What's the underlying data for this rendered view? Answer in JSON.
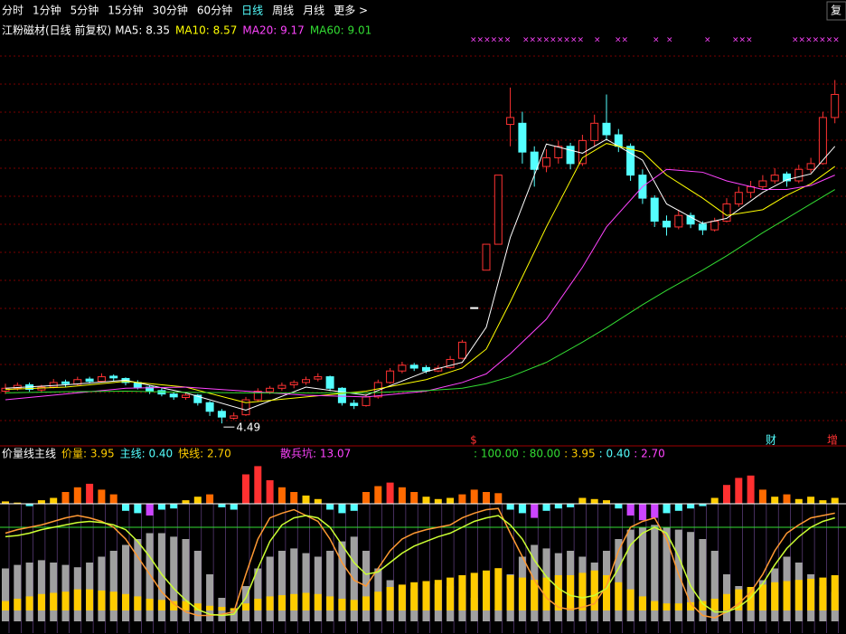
{
  "toolbar": {
    "items": [
      "分时",
      "1分钟",
      "5分钟",
      "15分钟",
      "30分钟",
      "60分钟",
      "日线",
      "周线",
      "月线",
      "更多 >"
    ],
    "active": 6,
    "right": "复"
  },
  "chart": {
    "type": "candlestick",
    "title": "江粉磁材(日线 前复权)",
    "legend": [
      {
        "text": "MA5: 8.35",
        "color": "#ffffff"
      },
      {
        "text": "MA10: 8.57",
        "color": "#ffff00"
      },
      {
        "text": "MA20: 9.17",
        "color": "#ff44ff"
      },
      {
        "text": "MA60: 9.01",
        "color": "#33dd33"
      }
    ],
    "ylim": [
      4.1,
      11.4
    ],
    "candles": [
      [
        5.05,
        5.18,
        5.0,
        5.1
      ],
      [
        5.1,
        5.2,
        5.06,
        5.15
      ],
      [
        5.16,
        5.2,
        5.04,
        5.08
      ],
      [
        5.07,
        5.16,
        5.03,
        5.12
      ],
      [
        5.12,
        5.26,
        5.1,
        5.2
      ],
      [
        5.21,
        5.25,
        5.12,
        5.18
      ],
      [
        5.17,
        5.3,
        5.15,
        5.25
      ],
      [
        5.26,
        5.3,
        5.18,
        5.22
      ],
      [
        5.22,
        5.36,
        5.2,
        5.3
      ],
      [
        5.31,
        5.34,
        5.22,
        5.28
      ],
      [
        5.27,
        5.29,
        5.15,
        5.2
      ],
      [
        5.2,
        5.24,
        5.08,
        5.12
      ],
      [
        5.12,
        5.15,
        5.0,
        5.05
      ],
      [
        5.06,
        5.1,
        4.96,
        5.0
      ],
      [
        5.0,
        5.04,
        4.9,
        4.95
      ],
      [
        4.94,
        5.02,
        4.9,
        4.98
      ],
      [
        4.98,
        5.0,
        4.8,
        4.85
      ],
      [
        4.85,
        4.88,
        4.62,
        4.7
      ],
      [
        4.7,
        4.74,
        4.49,
        4.6
      ],
      [
        4.58,
        4.68,
        4.55,
        4.62
      ],
      [
        4.64,
        4.95,
        4.62,
        4.9
      ],
      [
        4.9,
        5.1,
        4.86,
        5.05
      ],
      [
        5.04,
        5.14,
        5.0,
        5.1
      ],
      [
        5.1,
        5.2,
        5.06,
        5.15
      ],
      [
        5.16,
        5.24,
        5.1,
        5.2
      ],
      [
        5.2,
        5.3,
        5.16,
        5.25
      ],
      [
        5.26,
        5.36,
        5.22,
        5.3
      ],
      [
        5.3,
        5.32,
        5.05,
        5.1
      ],
      [
        5.1,
        5.12,
        4.8,
        4.85
      ],
      [
        4.84,
        4.9,
        4.74,
        4.8
      ],
      [
        4.8,
        5.0,
        4.78,
        4.95
      ],
      [
        4.95,
        5.25,
        4.92,
        5.2
      ],
      [
        5.2,
        5.45,
        5.18,
        5.4
      ],
      [
        5.4,
        5.56,
        5.36,
        5.5
      ],
      [
        5.5,
        5.54,
        5.4,
        5.45
      ],
      [
        5.46,
        5.5,
        5.36,
        5.4
      ],
      [
        5.4,
        5.5,
        5.38,
        5.45
      ],
      [
        5.46,
        5.66,
        5.44,
        5.6
      ],
      [
        5.62,
        5.94,
        5.6,
        5.9
      ],
      [
        6.5,
        6.5,
        6.5,
        6.5
      ],
      [
        7.15,
        7.6,
        7.15,
        7.6
      ],
      [
        7.6,
        8.8,
        7.6,
        8.8
      ],
      [
        9.68,
        10.32,
        9.3,
        9.8
      ],
      [
        9.7,
        9.9,
        9.0,
        9.2
      ],
      [
        9.2,
        9.3,
        8.6,
        8.9
      ],
      [
        8.95,
        9.25,
        8.85,
        9.1
      ],
      [
        9.1,
        9.4,
        9.0,
        9.3
      ],
      [
        9.3,
        9.36,
        8.9,
        9.0
      ],
      [
        9.0,
        9.5,
        8.96,
        9.4
      ],
      [
        9.4,
        9.85,
        9.3,
        9.7
      ],
      [
        9.7,
        10.2,
        9.4,
        9.5
      ],
      [
        9.5,
        9.6,
        9.2,
        9.3
      ],
      [
        9.3,
        9.35,
        8.7,
        8.8
      ],
      [
        8.8,
        8.9,
        8.3,
        8.4
      ],
      [
        8.4,
        8.45,
        7.9,
        8.0
      ],
      [
        8.0,
        8.1,
        7.75,
        7.9
      ],
      [
        7.9,
        8.2,
        7.86,
        8.1
      ],
      [
        8.1,
        8.15,
        7.88,
        7.95
      ],
      [
        7.95,
        8.0,
        7.76,
        7.85
      ],
      [
        7.85,
        8.06,
        7.82,
        8.0
      ],
      [
        8.0,
        8.4,
        7.98,
        8.3
      ],
      [
        8.3,
        8.6,
        8.25,
        8.5
      ],
      [
        8.5,
        8.7,
        8.4,
        8.6
      ],
      [
        8.6,
        8.8,
        8.55,
        8.7
      ],
      [
        8.7,
        8.92,
        8.65,
        8.8
      ],
      [
        8.82,
        8.86,
        8.6,
        8.7
      ],
      [
        8.7,
        8.98,
        8.66,
        8.9
      ],
      [
        8.9,
        9.1,
        8.84,
        9.0
      ],
      [
        9.0,
        9.9,
        8.98,
        9.8
      ],
      [
        9.8,
        10.45,
        9.7,
        10.2
      ]
    ],
    "low_label_index": 18,
    "ma_index": [
      0,
      5,
      10,
      15,
      20,
      25,
      30,
      35,
      38,
      40,
      42,
      45,
      48,
      50,
      53,
      55,
      58,
      60,
      63,
      65,
      67,
      69
    ],
    "ma": [
      {
        "color": "#ffffff",
        "values": [
          5.1,
          5.16,
          5.24,
          5.02,
          4.72,
          5.12,
          4.98,
          5.39,
          5.55,
          6.16,
          7.72,
          9.34,
          9.18,
          9.42,
          9.06,
          8.3,
          7.96,
          8.05,
          8.5,
          8.72,
          8.82,
          9.3
        ]
      },
      {
        "color": "#ffff00",
        "values": [
          5.08,
          5.12,
          5.22,
          5.12,
          4.85,
          4.95,
          5.05,
          5.25,
          5.45,
          5.78,
          6.6,
          7.9,
          9.1,
          9.35,
          9.2,
          8.8,
          8.4,
          8.1,
          8.2,
          8.45,
          8.65,
          8.95
        ]
      },
      {
        "color": "#ff44ff",
        "values": [
          4.9,
          5.0,
          5.1,
          5.12,
          5.05,
          4.98,
          4.95,
          5.05,
          5.2,
          5.35,
          5.7,
          6.3,
          7.2,
          7.9,
          8.6,
          8.9,
          8.85,
          8.7,
          8.55,
          8.55,
          8.62,
          8.8
        ]
      },
      {
        "color": "#33dd33",
        "values": [
          5.02,
          5.04,
          5.05,
          5.03,
          5.02,
          5.02,
          5.02,
          5.06,
          5.1,
          5.18,
          5.3,
          5.55,
          5.9,
          6.15,
          6.55,
          6.8,
          7.15,
          7.4,
          7.8,
          8.05,
          8.3,
          8.55
        ]
      }
    ],
    "signals": [
      "××××××",
      "×××××××",
      "××",
      "×",
      "××",
      "×",
      "×",
      "×",
      "×××",
      "×××××××"
    ],
    "markers": [
      "$",
      "财",
      "增"
    ]
  },
  "indicator": {
    "header": [
      {
        "text": "价量线主线",
        "color": "#ffffff"
      },
      {
        "text": "价量: 3.95",
        "color": "#ffcc00"
      },
      {
        "text": "主线: 0.40",
        "color": "#54ffff"
      },
      {
        "text": "快线: 2.70",
        "color": "#ffcc00"
      },
      {
        "text": "散兵坑: 13.07",
        "color": "#ff44ff"
      }
    ],
    "refs": [
      {
        "value": 100,
        "label": ": 100.00"
      },
      {
        "value": 80,
        "label": ": 80.00"
      }
    ],
    "extra": [
      ": 3.95",
      ": 0.40",
      ": 2.70"
    ],
    "top": [
      2,
      1,
      -2,
      3,
      5,
      10,
      14,
      17,
      12,
      8,
      -6,
      -8,
      -10,
      -5,
      -4,
      3,
      6,
      8,
      -3,
      -5,
      25,
      32,
      20,
      14,
      10,
      7,
      4,
      -5,
      -8,
      -6,
      10,
      15,
      18,
      14,
      10,
      6,
      4,
      5,
      8,
      12,
      10,
      9,
      -5,
      -8,
      -12,
      -6,
      -4,
      -3,
      5,
      4,
      3,
      -4,
      -10,
      -14,
      -12,
      -8,
      -6,
      -4,
      -2,
      5,
      16,
      22,
      24,
      12,
      6,
      8,
      4,
      6,
      3,
      5
    ],
    "gray": [
      45,
      48,
      50,
      52,
      50,
      48,
      46,
      50,
      55,
      60,
      65,
      70,
      75,
      75,
      72,
      70,
      60,
      40,
      20,
      10,
      30,
      45,
      55,
      60,
      62,
      58,
      55,
      60,
      68,
      72,
      60,
      45,
      35,
      30,
      28,
      30,
      32,
      30,
      25,
      20,
      15,
      10,
      40,
      55,
      65,
      62,
      58,
      60,
      55,
      50,
      60,
      70,
      78,
      80,
      82,
      80,
      78,
      76,
      70,
      60,
      40,
      30,
      28,
      35,
      45,
      55,
      50,
      40,
      30,
      25
    ],
    "yellow": [
      8,
      10,
      12,
      14,
      15,
      16,
      18,
      18,
      17,
      16,
      14,
      12,
      10,
      9,
      8,
      8,
      6,
      4,
      3,
      2,
      6,
      10,
      12,
      13,
      14,
      15,
      14,
      12,
      10,
      9,
      12,
      16,
      20,
      22,
      24,
      25,
      26,
      28,
      30,
      32,
      34,
      36,
      30,
      28,
      26,
      28,
      30,
      30,
      32,
      34,
      30,
      24,
      18,
      12,
      8,
      6,
      6,
      7,
      8,
      10,
      14,
      18,
      20,
      22,
      24,
      25,
      26,
      27,
      28,
      30
    ],
    "fast": [
      75,
      78,
      80,
      82,
      85,
      88,
      90,
      88,
      85,
      80,
      70,
      55,
      40,
      25,
      15,
      8,
      5,
      5,
      6,
      8,
      40,
      70,
      88,
      92,
      95,
      90,
      85,
      70,
      50,
      35,
      30,
      45,
      60,
      70,
      75,
      78,
      80,
      82,
      88,
      92,
      95,
      96,
      75,
      55,
      35,
      20,
      12,
      10,
      12,
      15,
      30,
      60,
      80,
      85,
      88,
      70,
      40,
      15,
      5,
      3,
      8,
      15,
      25,
      40,
      60,
      75,
      82,
      88,
      90,
      92
    ],
    "main": [
      72,
      73,
      75,
      78,
      80,
      82,
      84,
      85,
      84,
      82,
      78,
      68,
      55,
      40,
      28,
      18,
      10,
      6,
      5,
      6,
      20,
      45,
      68,
      82,
      88,
      90,
      88,
      80,
      65,
      50,
      40,
      42,
      50,
      58,
      64,
      68,
      72,
      75,
      80,
      85,
      88,
      90,
      82,
      70,
      52,
      38,
      28,
      22,
      20,
      22,
      28,
      45,
      65,
      75,
      80,
      75,
      55,
      30,
      15,
      8,
      8,
      12,
      20,
      32,
      48,
      62,
      72,
      80,
      85,
      88
    ]
  }
}
